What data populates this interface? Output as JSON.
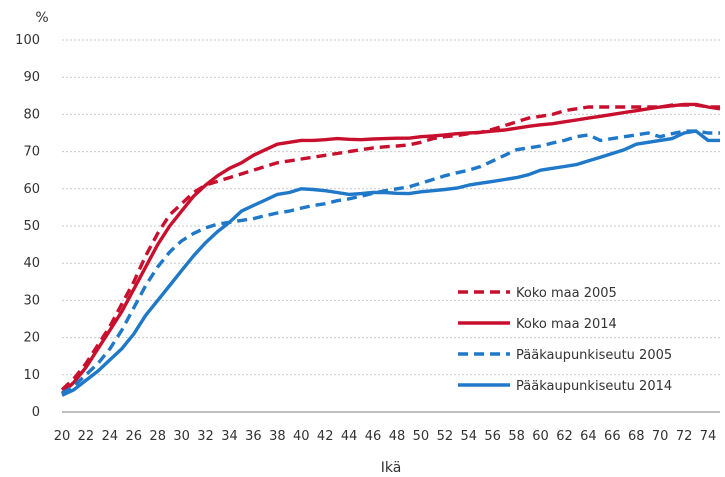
{
  "chart_data": {
    "type": "line",
    "ylabel": "%",
    "xlabel": "Ikä",
    "ylim": [
      0,
      100
    ],
    "yticks": [
      0,
      10,
      20,
      30,
      40,
      50,
      60,
      70,
      80,
      90,
      100
    ],
    "xlim": [
      20,
      75
    ],
    "xticks": [
      20,
      22,
      24,
      26,
      28,
      30,
      32,
      34,
      36,
      38,
      40,
      42,
      44,
      46,
      48,
      50,
      52,
      54,
      56,
      58,
      60,
      62,
      64,
      66,
      68,
      70,
      72,
      74
    ],
    "grid": "horizontal",
    "legend": "bottom-right",
    "series": [
      {
        "name": "Koko maa 2005",
        "color": "#c8102e",
        "dash": true,
        "x": [
          20,
          21,
          22,
          23,
          24,
          25,
          26,
          27,
          28,
          29,
          30,
          31,
          32,
          33,
          34,
          35,
          36,
          37,
          38,
          39,
          40,
          41,
          42,
          43,
          44,
          45,
          46,
          47,
          48,
          49,
          50,
          51,
          52,
          53,
          54,
          55,
          56,
          57,
          58,
          59,
          60,
          61,
          62,
          63,
          64,
          65,
          66,
          67,
          68,
          69,
          70,
          71,
          72,
          73,
          74,
          75
        ],
        "y": [
          6,
          9,
          13,
          18,
          23,
          29,
          35,
          42,
          48,
          53,
          56,
          59,
          61,
          62,
          63,
          64,
          65,
          66,
          67,
          67.5,
          68,
          68.5,
          69,
          69.5,
          70,
          70.5,
          71,
          71.3,
          71.5,
          71.8,
          72.5,
          73.5,
          74,
          74.3,
          74.8,
          75.2,
          76,
          77,
          78,
          79,
          79.5,
          80,
          81,
          81.5,
          82,
          82,
          82,
          82,
          82,
          82,
          82,
          82.5,
          82.5,
          82.5,
          82,
          82
        ]
      },
      {
        "name": "Koko maa 2014",
        "color": "#c8102e",
        "dash": false,
        "x": [
          20,
          21,
          22,
          23,
          24,
          25,
          26,
          27,
          28,
          29,
          30,
          31,
          32,
          33,
          34,
          35,
          36,
          37,
          38,
          39,
          40,
          41,
          42,
          43,
          44,
          45,
          46,
          47,
          48,
          49,
          50,
          51,
          52,
          53,
          54,
          55,
          56,
          57,
          58,
          59,
          60,
          61,
          62,
          63,
          64,
          65,
          66,
          67,
          68,
          69,
          70,
          71,
          72,
          73,
          74,
          75
        ],
        "y": [
          5,
          8,
          12,
          17,
          22,
          27,
          33,
          39,
          45,
          50,
          54,
          58,
          61,
          63.5,
          65.5,
          67,
          69,
          70.5,
          72,
          72.5,
          73,
          73,
          73.2,
          73.5,
          73.3,
          73.2,
          73.4,
          73.5,
          73.6,
          73.6,
          74,
          74.2,
          74.5,
          74.8,
          75,
          75.2,
          75.5,
          75.8,
          76.3,
          76.8,
          77.2,
          77.5,
          78,
          78.5,
          79,
          79.5,
          80,
          80.5,
          81,
          81.5,
          82,
          82.3,
          82.7,
          82.7,
          82,
          81.5
        ]
      },
      {
        "name": "Pääkaupunkiseutu 2005",
        "color": "#1f78c8",
        "dash": true,
        "x": [
          20,
          21,
          22,
          23,
          24,
          25,
          26,
          27,
          28,
          29,
          30,
          31,
          32,
          33,
          34,
          35,
          36,
          37,
          38,
          39,
          40,
          41,
          42,
          43,
          44,
          45,
          46,
          47,
          48,
          49,
          50,
          51,
          52,
          53,
          54,
          55,
          56,
          57,
          58,
          59,
          60,
          61,
          62,
          63,
          64,
          65,
          66,
          67,
          68,
          69,
          70,
          71,
          72,
          73,
          74,
          75
        ],
        "y": [
          5,
          7,
          10,
          13,
          17,
          22,
          28,
          34,
          39,
          43,
          46,
          48,
          49.5,
          50.5,
          51,
          51.5,
          52,
          52.8,
          53.5,
          54,
          54.8,
          55.5,
          56,
          56.8,
          57.3,
          58,
          58.8,
          59.5,
          60,
          60.5,
          61.5,
          62.5,
          63.5,
          64.3,
          65,
          66,
          67.5,
          69,
          70.5,
          71,
          71.5,
          72.3,
          73,
          74,
          74.5,
          73,
          73.5,
          74,
          74.5,
          75,
          74,
          74.8,
          75.5,
          75.5,
          75,
          75
        ]
      },
      {
        "name": "Pääkaupunkiseutu 2014",
        "color": "#1f78c8",
        "dash": false,
        "x": [
          20,
          21,
          22,
          23,
          24,
          25,
          26,
          27,
          28,
          29,
          30,
          31,
          32,
          33,
          34,
          35,
          36,
          37,
          38,
          39,
          40,
          41,
          42,
          43,
          44,
          45,
          46,
          47,
          48,
          49,
          50,
          51,
          52,
          53,
          54,
          55,
          56,
          57,
          58,
          59,
          60,
          61,
          62,
          63,
          64,
          65,
          66,
          67,
          68,
          69,
          70,
          71,
          72,
          73,
          74,
          75
        ],
        "y": [
          4.5,
          6,
          8.5,
          11,
          14,
          17,
          21,
          26,
          30,
          34,
          38,
          42,
          45.5,
          48.5,
          51,
          54,
          55.5,
          57,
          58.5,
          59,
          60,
          59.8,
          59.5,
          59,
          58.5,
          58.7,
          59,
          59,
          58.8,
          58.7,
          59.2,
          59.5,
          59.8,
          60.2,
          61,
          61.5,
          62,
          62.5,
          63,
          63.8,
          65,
          65.5,
          66,
          66.5,
          67.5,
          68.5,
          69.5,
          70.5,
          72,
          72.5,
          73,
          73.5,
          75,
          75.5,
          73,
          73
        ]
      }
    ]
  }
}
